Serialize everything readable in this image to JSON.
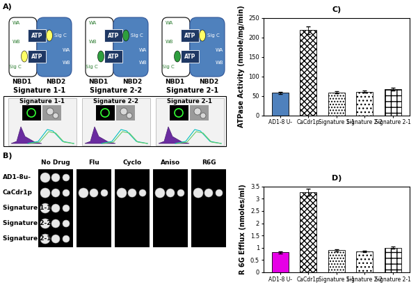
{
  "panel_a": {
    "label": "A)",
    "nbd_labels": [
      "NBD1",
      "NBD2"
    ],
    "atp": "ATP",
    "sig": "Sig C",
    "walker": [
      "WA",
      "WB"
    ],
    "diagrams": [
      {
        "title": "Signature 1-1",
        "sig_colors": [
          "#ffff66",
          "#ffff66"
        ]
      },
      {
        "title": "Signature 2-2",
        "sig_colors": [
          "#2e9e3e",
          "#2e9e3e"
        ]
      },
      {
        "title": "Signature 2-1",
        "sig_colors": [
          "#ffff66",
          "#2e9e3e"
        ]
      }
    ],
    "microscopy": [
      "Signature 1-1",
      "Signature 2-2",
      "Signature 2-1"
    ]
  },
  "panel_b": {
    "label": "B)",
    "columns": [
      "No Drug",
      "Flu",
      "Cyclo",
      "Aniso",
      "R6G"
    ],
    "rows": [
      "AD1-8u-",
      "CaCdr1p",
      "Signature 1-1",
      "Signature 2-2",
      "Signature 2-1"
    ],
    "growth": [
      [
        true,
        false,
        false,
        false,
        false
      ],
      [
        true,
        true,
        true,
        true,
        true
      ],
      [
        true,
        false,
        false,
        false,
        false
      ],
      [
        true,
        false,
        false,
        false,
        false
      ],
      [
        true,
        false,
        false,
        false,
        false
      ]
    ]
  },
  "chart_data": [
    {
      "type": "bar",
      "title": "C)",
      "y_label": "ATPase Activity (nmole/mg/min)",
      "categories": [
        "AD1-8 U-",
        "CaCdr1p",
        "Signature 1-1",
        "Signature 2-2",
        "Signature 2-1"
      ],
      "values": [
        58,
        218,
        59,
        61,
        67
      ],
      "errors": [
        3,
        10,
        3,
        3,
        4
      ],
      "colors": [
        "#4f81bd",
        "#ffffff",
        "#ffffff",
        "#ffffff",
        "#ffffff"
      ],
      "ylim": [
        0,
        250
      ],
      "yticks": [
        0,
        50,
        100,
        150,
        200,
        250
      ]
    },
    {
      "type": "bar",
      "title": "D)",
      "y_label": "R 6G Efflux (nmoles/ml)",
      "categories": [
        "AD1-8 U-",
        "CaCdr1p",
        "Signature 1-1",
        "Signature 2-2",
        "Signature 2-1"
      ],
      "values": [
        0.82,
        3.27,
        0.9,
        0.85,
        1.0
      ],
      "errors": [
        0.04,
        0.15,
        0.04,
        0.04,
        0.04
      ],
      "colors": [
        "#e600e6",
        "#ffffff",
        "#ffffff",
        "#ffffff",
        "#ffffff"
      ],
      "ylim": [
        0,
        3.5
      ],
      "yticks": [
        0,
        0.5,
        1,
        1.5,
        2,
        2.5,
        3,
        3.5
      ]
    }
  ]
}
